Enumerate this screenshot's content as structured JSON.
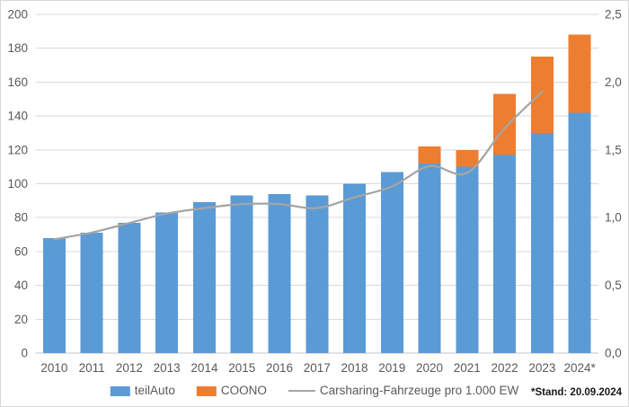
{
  "chart_data": {
    "type": "combo-stacked-bar-line",
    "categories": [
      "2010",
      "2011",
      "2012",
      "2013",
      "2014",
      "2015",
      "2016",
      "2017",
      "2018",
      "2019",
      "2020",
      "2021",
      "2022",
      "2023",
      "2024*"
    ],
    "series": [
      {
        "name": "teilAuto",
        "type": "bar",
        "stacked": true,
        "color": "#5B9BD5",
        "values": [
          68,
          71,
          77,
          83,
          89,
          93,
          94,
          93,
          100,
          107,
          112,
          110,
          117,
          130,
          142
        ]
      },
      {
        "name": "COONO",
        "type": "bar",
        "stacked": true,
        "color": "#ED7D31",
        "values": [
          0,
          0,
          0,
          0,
          0,
          0,
          0,
          0,
          0,
          0,
          10,
          10,
          36,
          45,
          46
        ]
      },
      {
        "name": "Carsharing-Fahrzeuge pro 1.000 EW",
        "type": "line",
        "axis": "right",
        "color": "#A5A5A5",
        "values": [
          0.84,
          0.89,
          0.96,
          1.03,
          1.07,
          1.1,
          1.1,
          1.07,
          1.15,
          1.23,
          1.38,
          1.33,
          1.66,
          1.93,
          null
        ]
      }
    ],
    "left_axis": {
      "min": 0,
      "max": 200,
      "step": 20,
      "tick_labels": [
        "0",
        "20",
        "40",
        "60",
        "80",
        "100",
        "120",
        "140",
        "160",
        "180",
        "200"
      ]
    },
    "right_axis": {
      "min": 0,
      "max": 2.5,
      "step": 0.5,
      "tick_labels": [
        "0,0",
        "0,5",
        "1,0",
        "1,5",
        "2,0",
        "2,5"
      ]
    },
    "grid": true,
    "legend_position": "bottom",
    "footnote": "*Stand: 20.09.2024",
    "style": {
      "gridline_color": "#D9D9D9",
      "axis_line_color": "#C6C6C6",
      "tick_label_color": "#595959",
      "line_width": 2.25,
      "smooth_line": true
    }
  }
}
